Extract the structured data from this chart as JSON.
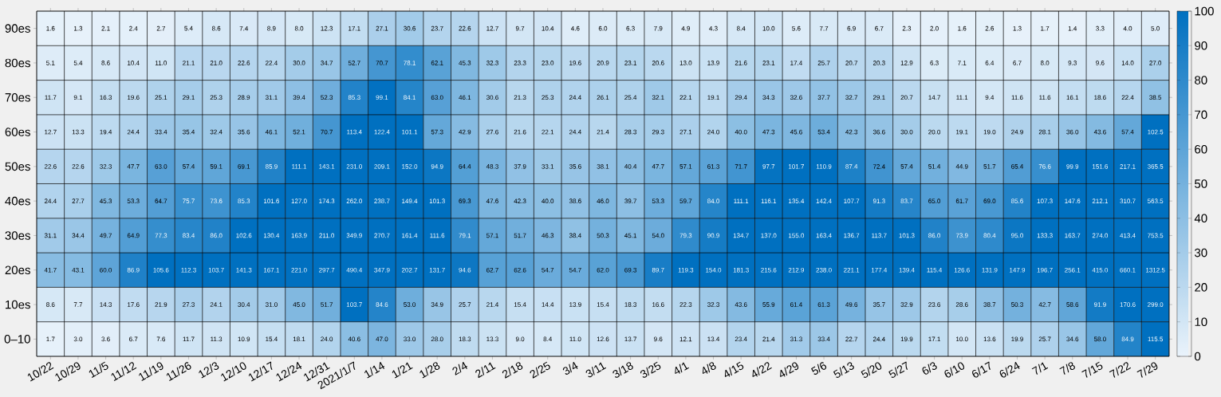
{
  "chart_data": {
    "type": "heatmap",
    "categories": [
      "10/22",
      "10/29",
      "11/5",
      "11/12",
      "11/19",
      "11/26",
      "12/3",
      "12/10",
      "12/17",
      "12/24",
      "12/31",
      "2021/1/7",
      "1/14",
      "1/21",
      "1/28",
      "2/4",
      "2/11",
      "2/18",
      "2/25",
      "3/4",
      "3/11",
      "3/18",
      "3/25",
      "4/1",
      "4/8",
      "4/15",
      "4/22",
      "4/29",
      "5/6",
      "5/13",
      "5/20",
      "5/27",
      "6/3",
      "6/10",
      "6/17",
      "6/24",
      "7/1",
      "7/8",
      "7/15",
      "7/22",
      "7/29"
    ],
    "y_categories": [
      "90es",
      "80es",
      "70es",
      "60es",
      "50es",
      "40es",
      "30es",
      "20es",
      "10es",
      "0–10"
    ],
    "cells": [
      [
        1.6,
        1.3,
        2.1,
        2.4,
        2.7,
        5.4,
        8.6,
        7.4,
        8.9,
        8.0,
        12.3,
        17.1,
        27.1,
        30.6,
        23.7,
        22.6,
        12.7,
        9.7,
        10.4,
        4.6,
        6.0,
        6.3,
        7.9,
        4.9,
        4.3,
        8.4,
        10.0,
        5.6,
        7.7,
        6.9,
        6.7,
        2.3,
        2.0,
        1.6,
        2.6,
        1.3,
        1.7,
        1.4,
        3.3,
        4.0,
        5.0
      ],
      [
        5.1,
        5.4,
        8.6,
        10.4,
        11.0,
        21.1,
        21.0,
        22.6,
        22.4,
        30.0,
        34.7,
        52.7,
        70.7,
        78.1,
        62.1,
        45.3,
        32.3,
        23.3,
        23.0,
        19.6,
        20.9,
        23.1,
        20.6,
        13.0,
        13.9,
        21.6,
        23.1,
        17.4,
        25.7,
        20.7,
        20.3,
        12.9,
        6.3,
        7.1,
        6.4,
        6.7,
        8.0,
        9.3,
        9.6,
        14.0,
        27.0
      ],
      [
        11.7,
        9.1,
        16.3,
        19.6,
        25.1,
        29.1,
        25.3,
        28.9,
        31.1,
        39.4,
        52.3,
        85.3,
        99.1,
        84.1,
        63.0,
        46.1,
        30.6,
        21.3,
        25.3,
        24.4,
        26.1,
        25.4,
        32.1,
        22.1,
        19.1,
        29.4,
        34.3,
        32.6,
        37.7,
        32.7,
        29.1,
        20.7,
        14.7,
        11.1,
        9.4,
        11.6,
        11.6,
        16.1,
        18.6,
        22.4,
        38.5
      ],
      [
        12.7,
        13.3,
        19.4,
        24.4,
        33.4,
        35.4,
        32.4,
        35.6,
        46.1,
        52.1,
        70.7,
        113.4,
        122.4,
        101.1,
        57.3,
        42.9,
        27.6,
        21.6,
        22.1,
        24.4,
        21.4,
        28.3,
        29.3,
        27.1,
        24.0,
        40.0,
        47.3,
        45.6,
        53.4,
        42.3,
        36.6,
        30.0,
        20.0,
        19.1,
        19.0,
        24.9,
        28.1,
        36.0,
        43.6,
        57.4,
        102.5
      ],
      [
        22.6,
        22.6,
        32.3,
        47.7,
        63.0,
        57.4,
        59.1,
        69.1,
        85.9,
        111.1,
        143.1,
        231.0,
        209.1,
        152.0,
        94.9,
        64.4,
        48.3,
        37.9,
        33.1,
        35.6,
        38.1,
        40.4,
        47.7,
        57.1,
        61.3,
        71.7,
        97.7,
        101.7,
        110.9,
        87.4,
        72.4,
        57.4,
        51.4,
        44.9,
        51.7,
        65.4,
        76.6,
        99.9,
        151.6,
        217.1,
        365.5
      ],
      [
        24.4,
        27.7,
        45.3,
        53.3,
        64.7,
        75.7,
        73.6,
        85.3,
        101.6,
        127.0,
        174.3,
        262.0,
        238.7,
        149.4,
        101.3,
        69.3,
        47.6,
        42.3,
        40.0,
        38.6,
        46.0,
        39.7,
        53.3,
        59.7,
        84.0,
        111.1,
        116.1,
        135.4,
        142.4,
        107.7,
        91.3,
        83.7,
        65.0,
        61.7,
        69.0,
        85.6,
        107.3,
        147.6,
        212.1,
        310.7,
        563.5
      ],
      [
        31.1,
        34.4,
        49.7,
        64.9,
        77.3,
        83.4,
        86.0,
        102.6,
        130.4,
        163.9,
        211.0,
        349.9,
        270.7,
        161.4,
        111.6,
        79.1,
        57.1,
        51.7,
        46.3,
        38.4,
        50.3,
        45.1,
        54.0,
        79.3,
        90.9,
        134.7,
        137.0,
        155.0,
        163.4,
        136.7,
        113.7,
        101.3,
        86.0,
        73.9,
        80.4,
        95.0,
        133.3,
        163.7,
        274.0,
        413.4,
        753.5
      ],
      [
        41.7,
        43.1,
        60.0,
        86.9,
        105.6,
        112.3,
        103.7,
        141.3,
        167.1,
        221.0,
        297.7,
        490.4,
        347.9,
        202.7,
        131.7,
        94.6,
        62.7,
        62.6,
        54.7,
        54.7,
        62.0,
        69.3,
        89.7,
        119.3,
        154.0,
        181.3,
        215.6,
        212.9,
        238.0,
        221.1,
        177.4,
        139.4,
        115.4,
        126.6,
        131.9,
        147.9,
        196.7,
        256.1,
        415.0,
        660.1,
        1312.5
      ],
      [
        8.6,
        7.7,
        14.3,
        17.6,
        21.9,
        27.3,
        24.1,
        30.4,
        31.0,
        45.0,
        51.7,
        103.7,
        84.6,
        53.0,
        34.9,
        25.7,
        21.4,
        15.4,
        14.4,
        13.9,
        15.4,
        18.3,
        16.6,
        22.3,
        32.3,
        43.6,
        55.9,
        61.4,
        61.3,
        49.6,
        35.7,
        32.9,
        23.6,
        28.6,
        38.7,
        50.3,
        42.7,
        58.6,
        91.9,
        170.6,
        299.0
      ],
      [
        1.7,
        3.0,
        3.6,
        6.7,
        7.6,
        11.7,
        11.3,
        10.9,
        15.4,
        18.1,
        24.0,
        40.6,
        47.0,
        33.0,
        28.0,
        18.3,
        13.3,
        9.0,
        8.4,
        11.0,
        12.6,
        13.7,
        9.6,
        12.1,
        13.4,
        23.4,
        21.4,
        31.3,
        33.4,
        22.7,
        24.4,
        19.9,
        17.1,
        10.0,
        13.6,
        19.9,
        25.7,
        34.6,
        58.0,
        84.9,
        115.5
      ]
    ],
    "cell_labels": [
      [
        "1.6",
        "1.3",
        "2.1",
        "2.4",
        "2.7",
        "5.4",
        "8.6",
        "7.4",
        "8.9",
        "8.0",
        "12.3",
        "17.1",
        "27.1",
        "30.6",
        "23.7",
        "22.6",
        "12.7",
        "9.7",
        "10.4",
        "4.6",
        "6.0",
        "6.3",
        "7.9",
        "4.9",
        "4.3",
        "8.4",
        "10.0",
        "5.6",
        "7.7",
        "6.9",
        "6.7",
        "2.3",
        "2.0",
        "1.6",
        "2.6",
        "1.3",
        "1.7",
        "1.4",
        "3.3",
        "4.0",
        "5.0"
      ],
      [
        "5.1",
        "5.4",
        "8.6",
        "10.4",
        "11.0",
        "21.1",
        "21.0",
        "22.6",
        "22.4",
        "30.0",
        "34.7",
        "52.7",
        "70.7",
        "78.1",
        "62.1",
        "45.3",
        "32.3",
        "23.3",
        "23.0",
        "19.6",
        "20.9",
        "23.1",
        "20.6",
        "13.0",
        "13.9",
        "21.6",
        "23.1",
        "17.4",
        "25.7",
        "20.7",
        "20.3",
        "12.9",
        "6.3",
        "7.1",
        "6.4",
        "6.7",
        "8.0",
        "9.3",
        "9.6",
        "14.0",
        "27.0"
      ],
      [
        "11.7",
        "9.1",
        "16.3",
        "19.6",
        "25.1",
        "29.1",
        "25.3",
        "28.9",
        "31.1",
        "39.4",
        "52.3",
        "85.3",
        "99.1",
        "84.1",
        "63.0",
        "46.1",
        "30.6",
        "21.3",
        "25.3",
        "24.4",
        "26.1",
        "25.4",
        "32.1",
        "22.1",
        "19.1",
        "29.4",
        "34.3",
        "32.6",
        "37.7",
        "32.7",
        "29.1",
        "20.7",
        "14.7",
        "11.1",
        "9.4",
        "11.6",
        "11.6",
        "16.1",
        "18.6",
        "22.4",
        "38.5"
      ],
      [
        "12.7",
        "13.3",
        "19.4",
        "24.4",
        "33.4",
        "35.4",
        "32.4",
        "35.6",
        "46.1",
        "52.1",
        "70.7",
        "113.4",
        "122.4",
        "101.1",
        "57.3",
        "42.9",
        "27.6",
        "21.6",
        "22.1",
        "24.4",
        "21.4",
        "28.3",
        "29.3",
        "27.1",
        "24.0",
        "40.0",
        "47.3",
        "45.6",
        "53.4",
        "42.3",
        "36.6",
        "30.0",
        "20.0",
        "19.1",
        "19.0",
        "24.9",
        "28.1",
        "36.0",
        "43.6",
        "57.4",
        "102.5"
      ],
      [
        "22.6",
        "22.6",
        "32.3",
        "47.7",
        "63.0",
        "57.4",
        "59.1",
        "69.1",
        "85.9",
        "111.1",
        "143.1",
        "231.0",
        "209.1",
        "152.0",
        "94.9",
        "64.4",
        "48.3",
        "37.9",
        "33.1",
        "35.6",
        "38.1",
        "40.4",
        "47.7",
        "57.1",
        "61.3",
        "71.7",
        "97.7",
        "101.7",
        "110.9",
        "87.4",
        "72.4",
        "57.4",
        "51.4",
        "44.9",
        "51.7",
        "65.4",
        "76.6",
        "99.9",
        "151.6",
        "217.1",
        "365.5"
      ],
      [
        "24.4",
        "27.7",
        "45.3",
        "53.3",
        "64.7",
        "75.7",
        "73.6",
        "85.3",
        "101.6",
        "127.0",
        "174.3",
        "262.0",
        "238.7",
        "149.4",
        "101.3",
        "69.3",
        "47.6",
        "42.3",
        "40.0",
        "38.6",
        "46.0",
        "39.7",
        "53.3",
        "59.7",
        "84.0",
        "111.1",
        "116.1",
        "135.4",
        "142.4",
        "107.7",
        "91.3",
        "83.7",
        "65.0",
        "61.7",
        "69.0",
        "85.6",
        "107.3",
        "147.6",
        "212.1",
        "310.7",
        "563.5"
      ],
      [
        "31.1",
        "34.4",
        "49.7",
        "64.9",
        "77.3",
        "83.4",
        "86.0",
        "102.6",
        "130.4",
        "163.9",
        "211.0",
        "349.9",
        "270.7",
        "161.4",
        "111.6",
        "79.1",
        "57.1",
        "51.7",
        "46.3",
        "38.4",
        "50.3",
        "45.1",
        "54.0",
        "79.3",
        "90.9",
        "134.7",
        "137.0",
        "155.0",
        "163.4",
        "136.7",
        "113.7",
        "101.3",
        "86.0",
        "73.9",
        "80.4",
        "95.0",
        "133.3",
        "163.7",
        "274.0",
        "413.4",
        "753.5"
      ],
      [
        "41.7",
        "43.1",
        "60.0",
        "86.9",
        "105.6",
        "112.3",
        "103.7",
        "141.3",
        "167.1",
        "221.0",
        "297.7",
        "490.4",
        "347.9",
        "202.7",
        "131.7",
        "94.6",
        "62.7",
        "62.6",
        "54.7",
        "54.7",
        "62.0",
        "69.3",
        "89.7",
        "119.3",
        "154.0",
        "181.3",
        "215.6",
        "212.9",
        "238.0",
        "221.1",
        "177.4",
        "139.4",
        "115.4",
        "126.6",
        "131.9",
        "147.9",
        "196.7",
        "256.1",
        "415.0",
        "660.1",
        "1312.5"
      ],
      [
        "8.6",
        "7.7",
        "14.3",
        "17.6",
        "21.9",
        "27.3",
        "24.1",
        "30.4",
        "31.0",
        "45.0",
        "51.7",
        "103.7",
        "84.6",
        "53.0",
        "34.9",
        "25.7",
        "21.4",
        "15.4",
        "14.4",
        "13.9",
        "15.4",
        "18.3",
        "16.6",
        "22.3",
        "32.3",
        "43.6",
        "55.9",
        "61.4",
        "61.3",
        "49.6",
        "35.7",
        "32.9",
        "23.6",
        "28.6",
        "38.7",
        "50.3",
        "42.7",
        "58.6",
        "91.9",
        "170.6",
        "299.0"
      ],
      [
        "1.7",
        "3.0",
        "3.6",
        "6.7",
        "7.6",
        "11.7",
        "11.3",
        "10.9",
        "15.4",
        "18.1",
        "24.0",
        "40.6",
        "47.0",
        "33.0",
        "28.0",
        "18.3",
        "13.3",
        "9.0",
        "8.4",
        "11.0",
        "12.6",
        "13.7",
        "9.6",
        "12.1",
        "13.4",
        "23.4",
        "21.4",
        "31.3",
        "33.4",
        "22.7",
        "24.4",
        "19.9",
        "17.1",
        "10.0",
        "13.6",
        "19.9",
        "25.7",
        "34.6",
        "58.0",
        "84.9",
        "115.5"
      ]
    ],
    "clim": [
      0,
      100
    ],
    "cticks": [
      0,
      10,
      20,
      30,
      40,
      50,
      60,
      70,
      80,
      90,
      100
    ],
    "data_labels": true
  }
}
